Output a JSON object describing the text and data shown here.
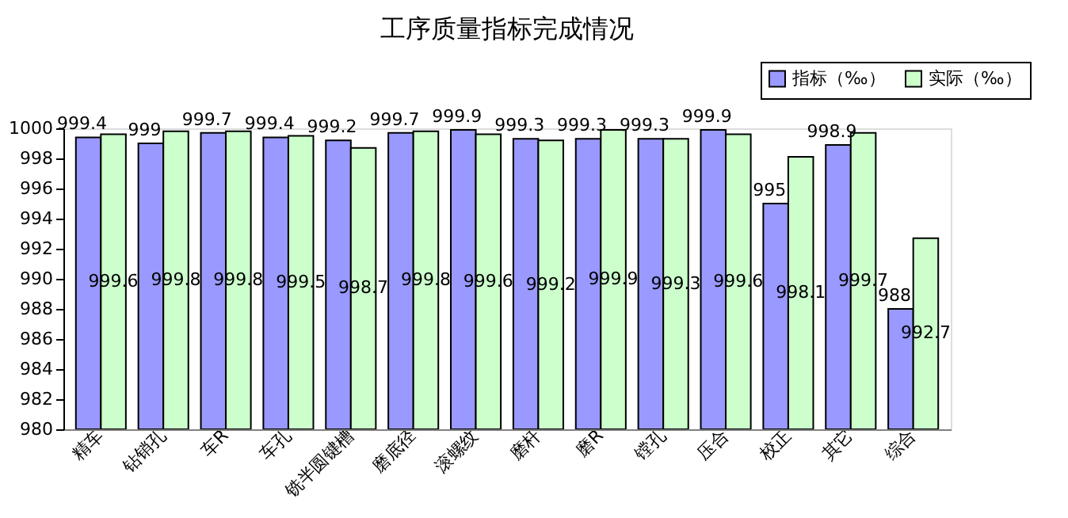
{
  "chart_data": {
    "type": "bar",
    "title": "工序质量指标完成情况",
    "categories": [
      "精车",
      "钻销孔",
      "车R",
      "车孔",
      "铣半圆键槽",
      "磨底径",
      "滚螺纹",
      "磨杆",
      "磨R",
      "镗孔",
      "压合",
      "校正",
      "其它",
      "综合"
    ],
    "series": [
      {
        "name": "指标（‰）",
        "color": "#9999ff",
        "values": [
          999.4,
          999.0,
          999.7,
          999.4,
          999.2,
          999.7,
          999.9,
          999.3,
          999.3,
          999.3,
          999.9,
          995.0,
          998.9,
          988.0
        ],
        "value_labels": [
          "999.4",
          "999",
          "999.7",
          "999.4",
          "999.2",
          "999.7",
          "999.9",
          "999.3",
          "999.3",
          "999.3",
          "999.9",
          "995",
          "998.9",
          "988"
        ]
      },
      {
        "name": "实际（‰）",
        "color": "#ccffcc",
        "values": [
          999.6,
          999.8,
          999.8,
          999.5,
          998.7,
          999.8,
          999.6,
          999.2,
          999.9,
          999.3,
          999.6,
          998.1,
          999.7,
          992.7
        ],
        "value_labels": [
          "999.6",
          "999.8",
          "999.8",
          "999.5",
          "998.7",
          "999.8",
          "999.6",
          "999.2",
          "999.9",
          "999.3",
          "999.6",
          "998.1",
          "999.7",
          "992.7"
        ]
      }
    ],
    "ylim": [
      980,
      1000
    ],
    "yticks": [
      980,
      982,
      984,
      986,
      988,
      990,
      992,
      994,
      996,
      998,
      1000
    ],
    "grid": false,
    "legend": "top right"
  }
}
